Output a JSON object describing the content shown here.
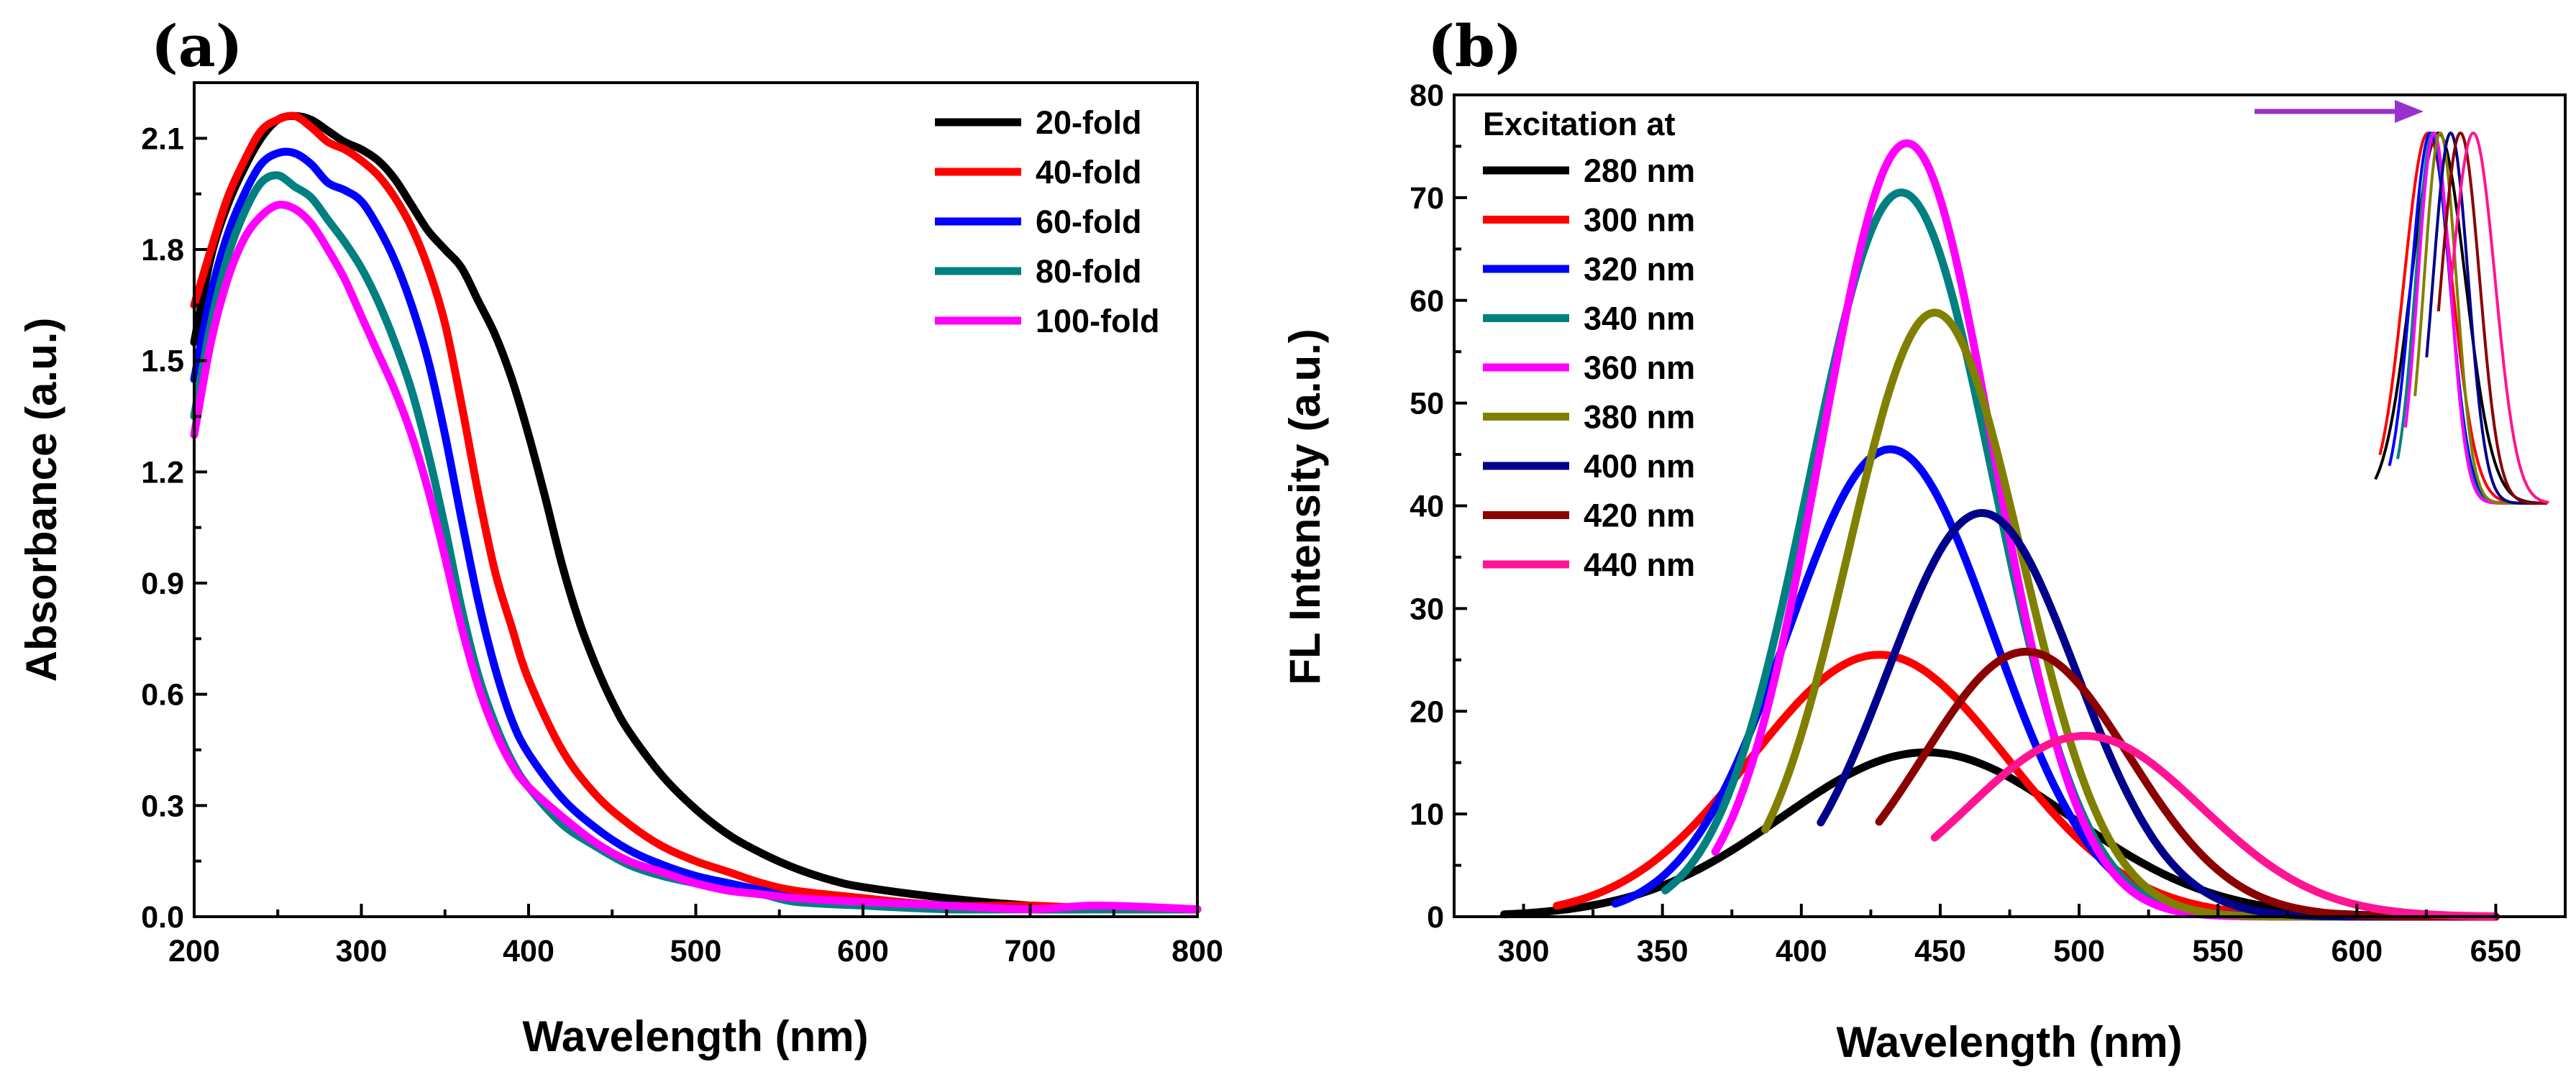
{
  "chart_data": [
    {
      "type": "line",
      "panel_label": "(a)",
      "xlabel": "Wavelength (nm)",
      "ylabel": "Absorbance (a.u.)",
      "xlim": [
        200,
        800
      ],
      "ylim": [
        0,
        2.25
      ],
      "xticks": [
        "200",
        "300",
        "400",
        "500",
        "600",
        "700",
        "800"
      ],
      "yticks": [
        "0.0",
        "0.3",
        "0.6",
        "0.9",
        "1.2",
        "1.5",
        "1.8",
        "2.1"
      ],
      "grid": false,
      "legend_position": "top-right",
      "series": [
        {
          "name": "20-fold",
          "color": "#000000",
          "x": [
            200,
            210,
            220,
            230,
            240,
            250,
            260,
            270,
            280,
            290,
            300,
            310,
            320,
            330,
            340,
            350,
            360,
            370,
            380,
            390,
            400,
            410,
            420,
            430,
            440,
            450,
            460,
            480,
            500,
            520,
            540,
            560,
            580,
            600,
            650,
            700,
            750,
            800
          ],
          "y": [
            1.55,
            1.78,
            1.92,
            2.02,
            2.1,
            2.15,
            2.16,
            2.15,
            2.12,
            2.09,
            2.07,
            2.04,
            1.99,
            1.92,
            1.85,
            1.8,
            1.75,
            1.66,
            1.57,
            1.45,
            1.3,
            1.13,
            0.95,
            0.8,
            0.68,
            0.58,
            0.5,
            0.38,
            0.29,
            0.22,
            0.17,
            0.13,
            0.1,
            0.08,
            0.05,
            0.03,
            0.02,
            0.02
          ]
        },
        {
          "name": "40-fold",
          "color": "#ff0000",
          "x": [
            200,
            210,
            220,
            230,
            240,
            250,
            260,
            270,
            280,
            290,
            300,
            310,
            320,
            330,
            340,
            350,
            360,
            370,
            380,
            390,
            400,
            420,
            440,
            460,
            480,
            500,
            520,
            540,
            560,
            600,
            650,
            700,
            750,
            800
          ],
          "y": [
            1.65,
            1.8,
            1.94,
            2.04,
            2.12,
            2.15,
            2.16,
            2.13,
            2.09,
            2.07,
            2.04,
            2.0,
            1.94,
            1.86,
            1.75,
            1.6,
            1.38,
            1.14,
            0.93,
            0.78,
            0.64,
            0.45,
            0.33,
            0.25,
            0.19,
            0.15,
            0.12,
            0.09,
            0.07,
            0.05,
            0.03,
            0.03,
            0.02,
            0.02
          ]
        },
        {
          "name": "60-fold",
          "color": "#0000ff",
          "x": [
            200,
            210,
            220,
            230,
            240,
            250,
            260,
            270,
            280,
            290,
            300,
            310,
            320,
            330,
            340,
            350,
            360,
            370,
            380,
            390,
            400,
            420,
            440,
            460,
            480,
            500,
            520,
            540,
            560,
            600,
            650,
            700,
            750,
            800
          ],
          "y": [
            1.45,
            1.68,
            1.84,
            1.95,
            2.03,
            2.06,
            2.06,
            2.03,
            1.98,
            1.96,
            1.93,
            1.86,
            1.77,
            1.65,
            1.5,
            1.3,
            1.07,
            0.85,
            0.67,
            0.53,
            0.44,
            0.32,
            0.24,
            0.18,
            0.14,
            0.11,
            0.09,
            0.07,
            0.05,
            0.04,
            0.03,
            0.02,
            0.02,
            0.02
          ]
        },
        {
          "name": "80-fold",
          "color": "#008080",
          "x": [
            200,
            210,
            220,
            230,
            240,
            250,
            260,
            270,
            280,
            290,
            300,
            310,
            320,
            330,
            340,
            350,
            360,
            370,
            380,
            390,
            400,
            420,
            440,
            460,
            480,
            500,
            520,
            540,
            560,
            600,
            650,
            700,
            750,
            800
          ],
          "y": [
            1.35,
            1.6,
            1.78,
            1.9,
            1.98,
            2.0,
            1.97,
            1.94,
            1.88,
            1.82,
            1.75,
            1.66,
            1.55,
            1.42,
            1.25,
            1.05,
            0.83,
            0.65,
            0.52,
            0.42,
            0.35,
            0.25,
            0.19,
            0.14,
            0.11,
            0.09,
            0.07,
            0.06,
            0.04,
            0.03,
            0.02,
            0.02,
            0.02,
            0.02
          ]
        },
        {
          "name": "100-fold",
          "color": "#ff00ff",
          "x": [
            200,
            210,
            220,
            230,
            240,
            250,
            260,
            270,
            280,
            290,
            300,
            310,
            320,
            330,
            340,
            350,
            360,
            370,
            380,
            390,
            400,
            420,
            440,
            460,
            480,
            500,
            520,
            540,
            560,
            600,
            650,
            700,
            740,
            800
          ],
          "y": [
            1.3,
            1.55,
            1.72,
            1.83,
            1.89,
            1.92,
            1.91,
            1.87,
            1.8,
            1.72,
            1.62,
            1.52,
            1.42,
            1.3,
            1.15,
            0.97,
            0.78,
            0.62,
            0.5,
            0.41,
            0.35,
            0.27,
            0.2,
            0.15,
            0.12,
            0.09,
            0.07,
            0.06,
            0.05,
            0.04,
            0.03,
            0.02,
            0.03,
            0.02
          ]
        }
      ]
    },
    {
      "type": "line",
      "panel_label": "(b)",
      "xlabel": "Wavelength (nm)",
      "ylabel": "FL Intensity (a.u.)",
      "xlim": [
        275,
        675
      ],
      "ylim": [
        0,
        80
      ],
      "xticks": [
        "300",
        "350",
        "400",
        "450",
        "500",
        "550",
        "600",
        "650"
      ],
      "yticks": [
        "0",
        "10",
        "20",
        "30",
        "40",
        "50",
        "60",
        "70",
        "80"
      ],
      "grid": false,
      "legend_title": "Excitation at",
      "legend_position": "top-left",
      "series": [
        {
          "name": "280 nm",
          "color": "#000000",
          "x0": 293,
          "mu": 445,
          "sigma": 52,
          "amp": 16
        },
        {
          "name": "300 nm",
          "color": "#ff0000",
          "x0": 312,
          "mu": 428,
          "sigma": 46,
          "amp": 25.5
        },
        {
          "name": "320 nm",
          "color": "#0000ff",
          "x0": 333,
          "mu": 432,
          "sigma": 37,
          "amp": 45.5
        },
        {
          "name": "340 nm",
          "color": "#008080",
          "x0": 351,
          "mu": 436,
          "sigma": 33,
          "amp": 70.5
        },
        {
          "name": "360 nm",
          "color": "#ff00ff",
          "x0": 369,
          "mu": 438,
          "sigma": 31,
          "amp": 75.3
        },
        {
          "name": "380 nm",
          "color": "#808000",
          "x0": 387,
          "mu": 448,
          "sigma": 31,
          "amp": 58.8
        },
        {
          "name": "400 nm",
          "color": "#00008b",
          "x0": 407,
          "mu": 465,
          "sigma": 34,
          "amp": 39.3
        },
        {
          "name": "420 nm",
          "color": "#8b0000",
          "x0": 428,
          "mu": 481,
          "sigma": 37,
          "amp": 25.8
        },
        {
          "name": "440 nm",
          "color": "#ff1493",
          "x0": 448,
          "mu": 502,
          "sigma": 42,
          "amp": 17.6
        }
      ],
      "inset": {
        "normalized": true,
        "arrow_color": "#9932cc",
        "arrow_direction": "right"
      }
    }
  ]
}
